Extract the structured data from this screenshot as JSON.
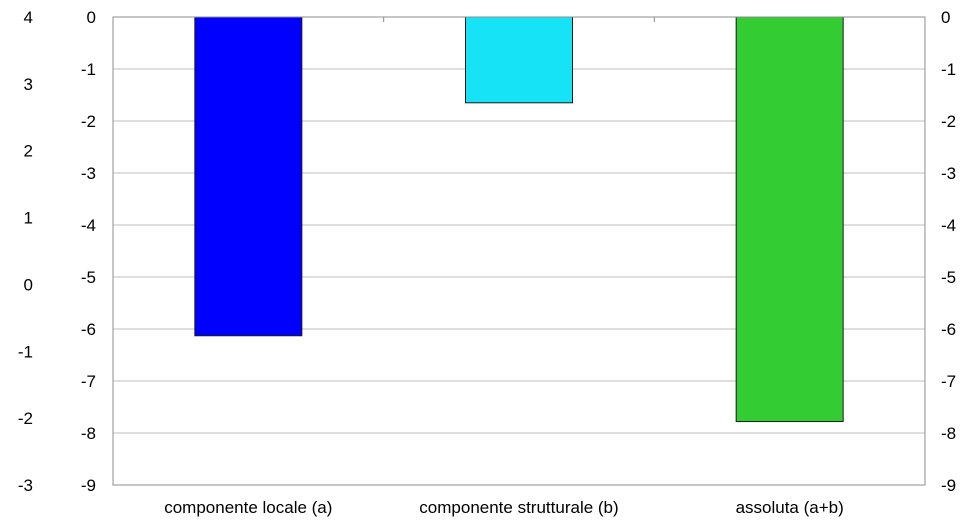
{
  "chart_data": {
    "type": "bar",
    "categories": [
      "componente locale (a)",
      "componente strutturale (b)",
      "assoluta (a+b)"
    ],
    "values": [
      -6.13,
      -1.65,
      -7.78
    ],
    "bar_colors": [
      "#0000ff",
      "#17e3f7",
      "#33cc33"
    ],
    "ylim": [
      -9,
      0
    ],
    "yticks": [
      "0",
      "-1",
      "-2",
      "-3",
      "-4",
      "-5",
      "-6",
      "-7",
      "-8",
      "-9"
    ],
    "secondary_left_axis": {
      "ticks": [
        "4",
        "3",
        "2",
        "1",
        "0",
        "-1",
        "-2",
        "-3"
      ],
      "range": [
        -3,
        4
      ]
    },
    "right_axis": {
      "ticks": [
        "0",
        "-1",
        "-2",
        "-3",
        "-4",
        "-5",
        "-6",
        "-7",
        "-8",
        "-9"
      ]
    },
    "gridlines": true,
    "legend": false
  }
}
